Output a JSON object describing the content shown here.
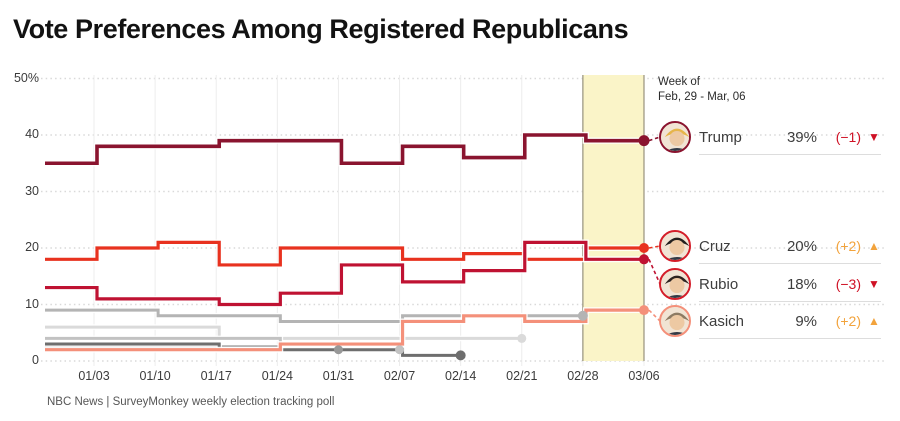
{
  "title": "Vote Preferences Among Registered Republicans",
  "source": "NBC News | SurveyMonkey weekly election tracking poll",
  "annotation": {
    "line1": "Week of",
    "line2": "Feb, 29 - Mar, 06"
  },
  "icons": {
    "up_triangle": "▲",
    "down_triangle": "▼"
  },
  "colors": {
    "trump": "#8a142f",
    "cruz": "#e8321f",
    "rubio": "#bf1232",
    "kasich": "#f4907a",
    "negative": "#cf1125",
    "positive": "#f2a33c",
    "band_fill": "#faf4c8",
    "band_edge": "#97927c",
    "grid_dotted": "#d9d9d9",
    "grid_vertical": "#ececec",
    "row_underline": "#dddddd"
  },
  "chart_data": {
    "type": "line",
    "step": true,
    "title": "Vote Preferences Among Registered Republicans",
    "xlabel": "",
    "ylabel": "",
    "ylim": [
      0,
      50
    ],
    "grid": true,
    "legend_position": "right",
    "x_tick_labels": [
      "01/03",
      "01/10",
      "01/17",
      "01/24",
      "01/31",
      "02/07",
      "02/14",
      "02/21",
      "02/28",
      "03/06"
    ],
    "y_ticks": [
      {
        "value": 0,
        "label": "0"
      },
      {
        "value": 10,
        "label": "10"
      },
      {
        "value": 20,
        "label": "20"
      },
      {
        "value": 30,
        "label": "30"
      },
      {
        "value": 40,
        "label": "40"
      },
      {
        "value": 50,
        "label": "50%"
      }
    ],
    "highlight_band": {
      "from": "02/28",
      "to": "03/06",
      "label": "Week of Feb, 29 - Mar, 06"
    },
    "series": [
      {
        "name": "unlabeled-gray-1",
        "color": "#dadada",
        "width": 3,
        "dot_r": 4.5,
        "values": [
          6,
          6,
          6,
          4,
          4,
          4,
          4,
          4,
          null,
          null
        ]
      },
      {
        "name": "unlabeled-gray-2",
        "color": "#c2c2c2",
        "width": 3,
        "dot_r": 4.5,
        "values": [
          4,
          4,
          4,
          4,
          2,
          2,
          null,
          null,
          null,
          null
        ]
      },
      {
        "name": "unlabeled-gray-3",
        "color": "#989898",
        "width": 3,
        "dot_r": 4.5,
        "values": [
          2.5,
          2.5,
          2.5,
          2.5,
          2,
          null,
          null,
          null,
          null,
          null
        ]
      },
      {
        "name": "unlabeled-gray-4",
        "color": "#b4b4b4",
        "width": 3,
        "dot_r": 5,
        "values": [
          9,
          9,
          8,
          8,
          7,
          7,
          8,
          8,
          8,
          null
        ]
      },
      {
        "name": "unlabeled-gray-5",
        "color": "#6e6e6e",
        "width": 3,
        "dot_r": 5,
        "values": [
          3,
          3,
          3,
          2,
          2,
          2,
          1,
          null,
          null,
          null
        ]
      },
      {
        "name": "Kasich",
        "color": "#f4907a",
        "width": 3.2,
        "dot_r": 5,
        "values": [
          2,
          2,
          2,
          2,
          3,
          3,
          7,
          8,
          7,
          9
        ]
      },
      {
        "name": "Cruz",
        "color": "#e8321f",
        "width": 3.2,
        "dot_r": 5,
        "values": [
          18,
          20,
          21,
          17,
          20,
          20,
          18,
          19,
          18,
          20
        ]
      },
      {
        "name": "Rubio",
        "color": "#bf1232",
        "width": 3.2,
        "dot_r": 5,
        "values": [
          13,
          11,
          11,
          10,
          12,
          17,
          14,
          16,
          21,
          18
        ]
      },
      {
        "name": "Trump",
        "color": "#8a142f",
        "width": 3.6,
        "dot_r": 5.5,
        "values": [
          35,
          38,
          38,
          39,
          39,
          35,
          38,
          36,
          40,
          39
        ]
      }
    ]
  },
  "legend": {
    "rows": [
      {
        "name": "Trump",
        "pct": "39%",
        "change": "(−1)",
        "direction": "down",
        "ring": "#8a142f",
        "hair": "#e6b54a"
      },
      {
        "name": "Cruz",
        "pct": "20%",
        "change": "(+2)",
        "direction": "up",
        "ring": "#d41e2a",
        "hair": "#23201e"
      },
      {
        "name": "Rubio",
        "pct": "18%",
        "change": "(−3)",
        "direction": "down",
        "ring": "#d41e2a",
        "hair": "#2e2420"
      },
      {
        "name": "Kasich",
        "pct": "9%",
        "change": "(+2)",
        "direction": "up",
        "ring": "#f4907a",
        "hair": "#8d7b63"
      }
    ]
  }
}
